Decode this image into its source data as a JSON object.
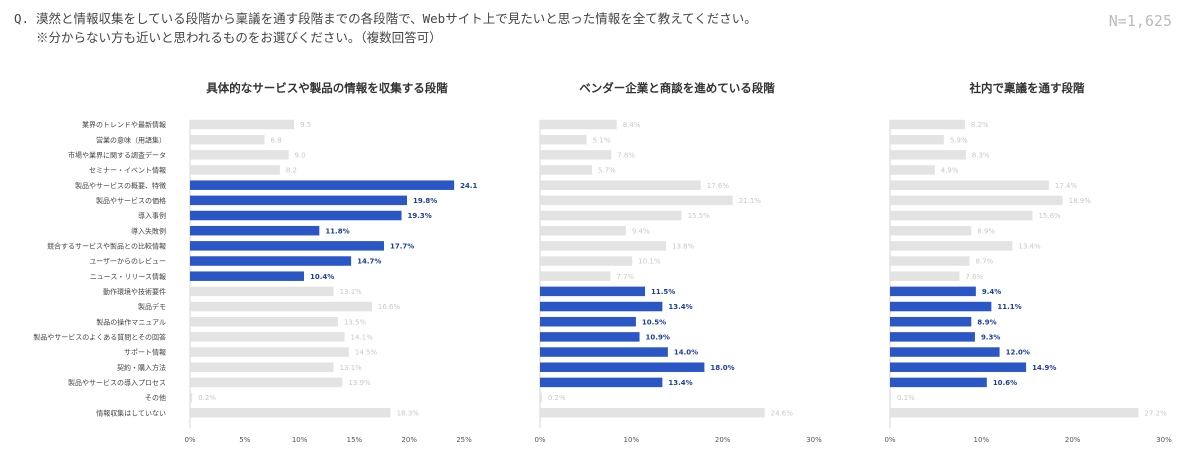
{
  "header": {
    "question_prefix": "Q.",
    "question_line1": "漠然と情報収集をしている段階から稟議を通す段階までの各段階で、Webサイト上で見たいと思った情報を全て教えてください。",
    "question_line2": "※分からない方も近いと思われるものをお選びください。（複数回答可）",
    "sample_size": "N=1,625"
  },
  "colors": {
    "highlight": "#2a56c6",
    "base": "#e3e3e3",
    "highlight_label": "#1d3f9a",
    "base_label": "#c8c8c8"
  },
  "chart_data": [
    {
      "type": "bar",
      "orientation": "horizontal",
      "title": "具体的なサービスや製品の情報を収集する段階",
      "categories": [
        "業界のトレンドや最新情報",
        "営業の意味（用語集）",
        "市場や業界に関する調査データ",
        "セミナー・イベント情報",
        "製品やサービスの概要、特徴",
        "製品やサービスの価格",
        "導入事例",
        "導入失敗例",
        "競合するサービスや製品との比較情報",
        "ユーザーからのレビュー",
        "ニュース・リリース情報",
        "動作環境や技術要件",
        "製品デモ",
        "製品の操作マニュアル",
        "製品やサービスのよくある質問とその回答",
        "サポート情報",
        "契約・購入方法",
        "製品やサービスの導入プロセス",
        "その他",
        "情報収集はしていない"
      ],
      "values": [
        9.5,
        6.8,
        9.0,
        8.2,
        24.1,
        19.8,
        19.3,
        11.8,
        17.7,
        14.7,
        10.4,
        13.1,
        16.6,
        13.5,
        14.1,
        14.5,
        13.1,
        13.9,
        0.2,
        18.3
      ],
      "value_labels": [
        "9.5",
        "6.8",
        "9.0",
        "8.2",
        "24.1",
        "19.8%",
        "19.3%",
        "11.8%",
        "17.7%",
        "14.7%",
        "10.4%",
        "13.1%",
        "16.6%",
        "13.5%",
        "14.1%",
        "14.5%",
        "13.1%",
        "13.9%",
        "0.2%",
        "18.3%"
      ],
      "highlighted": [
        false,
        false,
        false,
        false,
        true,
        true,
        true,
        true,
        true,
        true,
        true,
        false,
        false,
        false,
        false,
        false,
        false,
        false,
        false,
        false
      ],
      "xlim": [
        0,
        25
      ],
      "ticks": [
        "0%",
        "5%",
        "10%",
        "15%",
        "20%",
        "25%"
      ],
      "tick_values": [
        0,
        5,
        10,
        15,
        20,
        25
      ],
      "show_category_labels": true
    },
    {
      "type": "bar",
      "orientation": "horizontal",
      "title": "ベンダー企業と商談を進めている段階",
      "values": [
        8.4,
        5.1,
        7.8,
        5.7,
        17.6,
        21.1,
        15.5,
        9.4,
        13.8,
        10.1,
        7.7,
        11.5,
        13.4,
        10.5,
        10.9,
        14.0,
        18.0,
        13.4,
        0.2,
        24.6
      ],
      "value_labels": [
        "8.4%",
        "5.1%",
        "7.8%",
        "5.7%",
        "17.6%",
        "21.1%",
        "15.5%",
        "9.4%",
        "13.8%",
        "10.1%",
        "7.7%",
        "11.5%",
        "13.4%",
        "10.5%",
        "10.9%",
        "14.0%",
        "18.0%",
        "13.4%",
        "0.2%",
        "24.6%"
      ],
      "highlighted": [
        false,
        false,
        false,
        false,
        false,
        false,
        false,
        false,
        false,
        false,
        false,
        true,
        true,
        true,
        true,
        true,
        true,
        true,
        false,
        false
      ],
      "xlim": [
        0,
        30
      ],
      "ticks": [
        "0%",
        "10%",
        "20%",
        "30%"
      ],
      "tick_values": [
        0,
        10,
        20,
        30
      ],
      "show_category_labels": false
    },
    {
      "type": "bar",
      "orientation": "horizontal",
      "title": "社内で稟議を通す段階",
      "values": [
        8.2,
        5.9,
        8.3,
        4.9,
        17.4,
        18.9,
        15.6,
        8.9,
        13.4,
        8.7,
        7.6,
        9.4,
        11.1,
        8.9,
        9.3,
        12.0,
        14.9,
        10.6,
        0.1,
        27.2
      ],
      "value_labels": [
        "8.2%",
        "5.9%",
        "8.3%",
        "4.9%",
        "17.4%",
        "18.9%",
        "15.6%",
        "8.9%",
        "13.4%",
        "8.7%",
        "7.6%",
        "9.4%",
        "11.1%",
        "8.9%",
        "9.3%",
        "12.0%",
        "14.9%",
        "10.6%",
        "0.1%",
        "27.2%"
      ],
      "highlighted": [
        false,
        false,
        false,
        false,
        false,
        false,
        false,
        false,
        false,
        false,
        false,
        true,
        true,
        true,
        true,
        true,
        true,
        true,
        false,
        false
      ],
      "xlim": [
        0,
        30
      ],
      "ticks": [
        "0%",
        "10%",
        "20%",
        "30%"
      ],
      "tick_values": [
        0,
        10,
        20,
        30
      ],
      "show_category_labels": false
    }
  ]
}
